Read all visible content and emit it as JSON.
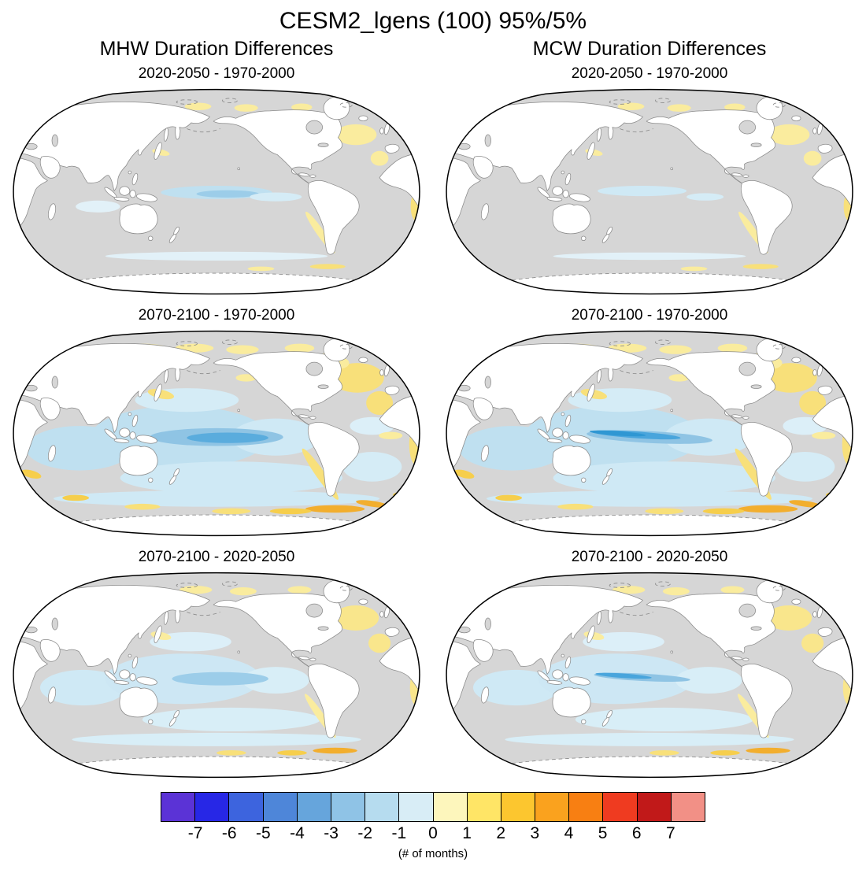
{
  "title": "CESM2_lgens (100) 95%/5%",
  "columns": [
    {
      "label": "MHW Duration Differences"
    },
    {
      "label": "MCW Duration Differences"
    }
  ],
  "panels": [
    {
      "column": "MHW",
      "title": "2020-2050 - 1970-2000"
    },
    {
      "column": "MCW",
      "title": "2020-2050 - 1970-2000"
    },
    {
      "column": "MHW",
      "title": "2070-2100 - 1970-2000"
    },
    {
      "column": "MCW",
      "title": "2070-2100 - 1970-2000"
    },
    {
      "column": "MHW",
      "title": "2070-2100 - 2020-2050"
    },
    {
      "column": "MCW",
      "title": "2070-2100 - 2020-2050"
    }
  ],
  "colorbar": {
    "ticks": [
      "-7",
      "-6",
      "-5",
      "-4",
      "-3",
      "-2",
      "-1",
      "0",
      "1",
      "2",
      "3",
      "4",
      "5",
      "6",
      "7"
    ],
    "colors": [
      "#5B33D6",
      "#2727E6",
      "#3D64DE",
      "#4E86D9",
      "#66A5DC",
      "#8FC3E6",
      "#B6DCEF",
      "#D8EDF6",
      "#FDF6BC",
      "#FFE566",
      "#FCC62F",
      "#FAA21E",
      "#F87F12",
      "#EF3B20",
      "#C11919",
      "#F29086"
    ],
    "label": "(# of months)"
  },
  "map_colors": {
    "ocean": "#D6D6D6",
    "land": "#FFFFFF",
    "coastline": "#8A8A8A",
    "outline": "#000000"
  },
  "chart_data": {
    "type": "heatmap",
    "title": "CESM2_lgens (100) 95%/5%",
    "subtitle_left": "MHW Duration Differences",
    "subtitle_right": "MCW Duration Differences",
    "unit": "# of months",
    "value_range": [
      -7,
      7
    ],
    "colorbar_ticks": [
      -7,
      -6,
      -5,
      -4,
      -3,
      -2,
      -1,
      0,
      1,
      2,
      3,
      4,
      5,
      6,
      7
    ],
    "colorbar_colors": [
      "#5B33D6",
      "#2727E6",
      "#3D64DE",
      "#4E86D9",
      "#66A5DC",
      "#8FC3E6",
      "#B6DCEF",
      "#D8EDF6",
      "#FDF6BC",
      "#FFE566",
      "#FCC62F",
      "#FAA21E",
      "#F87F12",
      "#EF3B20",
      "#C11919",
      "#F29086"
    ],
    "projection": "Robinson, Pacific-centered",
    "panels": [
      {
        "variable": "MHW duration difference",
        "comparison": "2020-2050 - 1970-2000",
        "grid": "left column, row 1",
        "regional_values_months": [
          {
            "region": "central equatorial Pacific",
            "value": -1
          },
          {
            "region": "eastern tropical Pacific",
            "value": -1
          },
          {
            "region": "subpolar North Atlantic",
            "value": 1
          },
          {
            "region": "Arctic shelf seas",
            "value": 1
          },
          {
            "region": "Chile-Peru coastal band",
            "value": 1
          },
          {
            "region": "most other ocean",
            "value": 0
          }
        ]
      },
      {
        "variable": "MCW duration difference",
        "comparison": "2020-2050 - 1970-2000",
        "grid": "right column, row 1",
        "regional_values_months": [
          {
            "region": "central equatorial Pacific",
            "value": -1
          },
          {
            "region": "subpolar North Atlantic",
            "value": 1
          },
          {
            "region": "Arctic shelf seas",
            "value": 1
          },
          {
            "region": "most other ocean",
            "value": 0
          }
        ]
      },
      {
        "variable": "MHW duration difference",
        "comparison": "2070-2100 - 1970-2000",
        "grid": "left column, row 2",
        "regional_values_months": [
          {
            "region": "central equatorial Pacific core",
            "value": -3
          },
          {
            "region": "tropical Pacific",
            "value": -2
          },
          {
            "region": "Indian Ocean",
            "value": -1
          },
          {
            "region": "Southern Ocean mid-latitudes",
            "value": -1
          },
          {
            "region": "subpolar North Atlantic",
            "value": 2
          },
          {
            "region": "Arctic shelf seas",
            "value": 1
          },
          {
            "region": "Antarctic coastal band, Atlantic sector",
            "value": 3
          },
          {
            "region": "Chile-Peru coastal band",
            "value": 1
          }
        ]
      },
      {
        "variable": "MCW duration difference",
        "comparison": "2070-2100 - 1970-2000",
        "grid": "right column, row 2",
        "regional_values_months": [
          {
            "region": "west-central equatorial Pacific streak",
            "value": -3
          },
          {
            "region": "tropical Pacific",
            "value": -2
          },
          {
            "region": "Indian Ocean",
            "value": -1
          },
          {
            "region": "subpolar North Atlantic",
            "value": 2
          },
          {
            "region": "Antarctic coastal band, Atlantic sector",
            "value": 3
          },
          {
            "region": "Arctic shelf seas",
            "value": 1
          }
        ]
      },
      {
        "variable": "MHW duration difference",
        "comparison": "2070-2100 - 2020-2050",
        "grid": "left column, row 3",
        "regional_values_months": [
          {
            "region": "central equatorial Pacific",
            "value": -2
          },
          {
            "region": "tropical Pacific and Indian Ocean",
            "value": -1
          },
          {
            "region": "subpolar North Atlantic",
            "value": 1
          },
          {
            "region": "Antarctic coastal band, Atlantic sector",
            "value": 2
          },
          {
            "region": "most other ocean",
            "value": 0
          }
        ]
      },
      {
        "variable": "MCW duration difference",
        "comparison": "2070-2100 - 2020-2050",
        "grid": "right column, row 3",
        "regional_values_months": [
          {
            "region": "west-central equatorial Pacific streak",
            "value": -2
          },
          {
            "region": "tropical Pacific and Indian Ocean",
            "value": -1
          },
          {
            "region": "subpolar North Atlantic",
            "value": 1
          },
          {
            "region": "Antarctic coastal band, Atlantic sector",
            "value": 2
          },
          {
            "region": "most other ocean",
            "value": 0
          }
        ]
      }
    ]
  }
}
